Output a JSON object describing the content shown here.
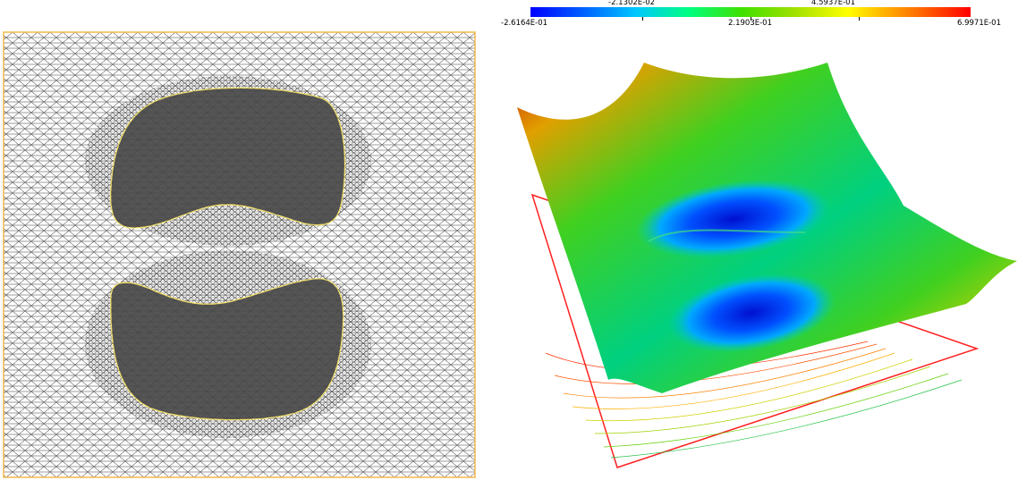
{
  "colorbar": {
    "min_label": "-2.6164E-01",
    "mid_label": "2.1903E-01",
    "max_label": "6.9971E-01",
    "upper_tick_1": "-2.1302E-02",
    "upper_tick_2": "4.5937E-01",
    "colors": [
      "#0000ff",
      "#00c8ff",
      "#00ff80",
      "#a0e000",
      "#ffff00",
      "#ff8000",
      "#ff0000"
    ]
  },
  "mesh": {
    "border_color": "#f2b84b",
    "mesh_color": "#202020",
    "hole_fill": "#555555",
    "hole_outline": "#f5e36a"
  },
  "surface": {
    "contour_plane_color": "#ff2020"
  }
}
